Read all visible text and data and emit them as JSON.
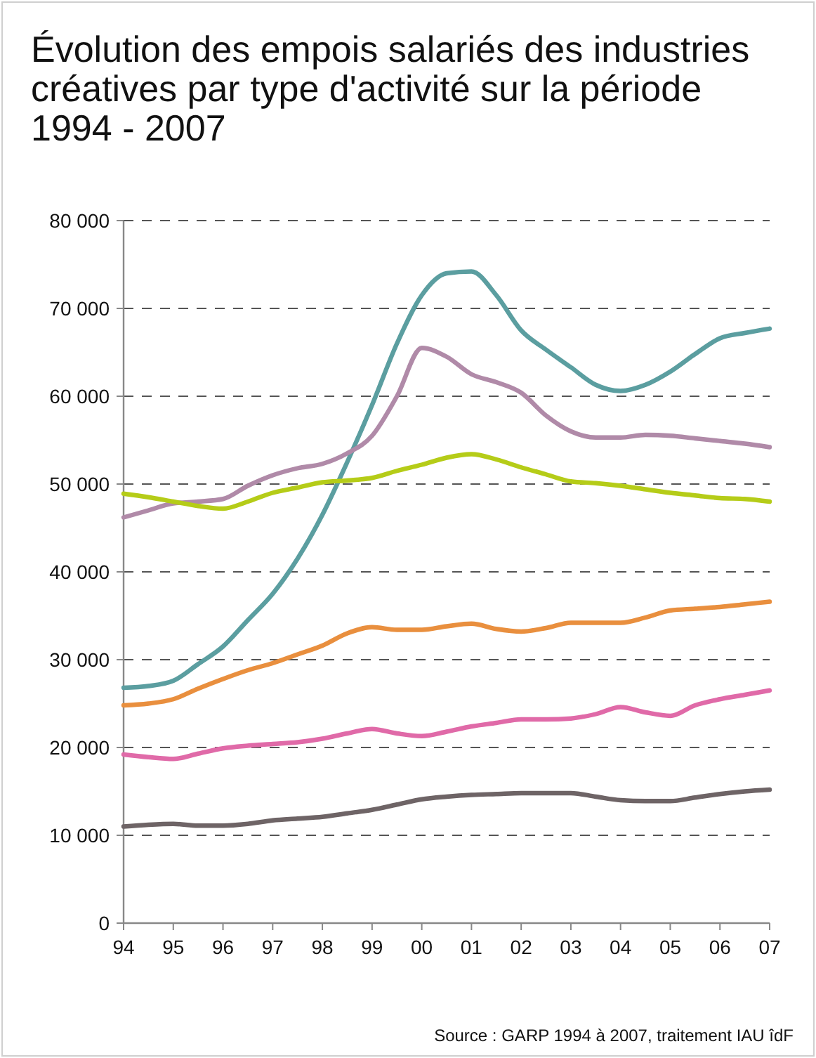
{
  "chart_data": {
    "type": "line",
    "title": "Évolution des empois salariés des industries créatives par type d'activité sur la période 1994 - 2007",
    "x": [
      1994,
      1994.5,
      1995,
      1995.5,
      1996,
      1996.5,
      1997,
      1997.5,
      1998,
      1998.5,
      1999,
      1999.5,
      2000,
      2000.5,
      2001,
      2001.5,
      2002,
      2002.5,
      2003,
      2003.5,
      2004,
      2004.5,
      2005,
      2005.5,
      2006,
      2006.5,
      2007
    ],
    "series": [
      {
        "color": "#5b9ea0",
        "values": [
          26800,
          27000,
          27600,
          29500,
          31500,
          34500,
          37500,
          41500,
          46500,
          52500,
          59000,
          66000,
          71500,
          74000,
          74200,
          71500,
          67500,
          65300,
          63300,
          61300,
          60600,
          61300,
          62800,
          64800,
          66600,
          67200,
          67700
        ]
      },
      {
        "color": "#b08aa8",
        "values": [
          46200,
          47000,
          47800,
          48000,
          48300,
          49800,
          51000,
          51800,
          52300,
          53500,
          55500,
          60000,
          65500,
          64500,
          62500,
          61600,
          60400,
          57800,
          56000,
          55300,
          55300,
          55600,
          55500,
          55200,
          54900,
          54600,
          54200
        ]
      },
      {
        "color": "#b5cc18",
        "values": [
          48900,
          48500,
          48000,
          47500,
          47200,
          48000,
          49000,
          49600,
          50200,
          50400,
          50700,
          51500,
          52200,
          53000,
          53400,
          52800,
          51900,
          51100,
          50300,
          50100,
          49800,
          49400,
          49000,
          48700,
          48400,
          48300,
          48000
        ]
      },
      {
        "color": "#e98f3e",
        "values": [
          24800,
          25000,
          25500,
          26700,
          27800,
          28800,
          29600,
          30600,
          31600,
          33000,
          33700,
          33400,
          33400,
          33800,
          34100,
          33500,
          33200,
          33600,
          34200,
          34200,
          34200,
          34800,
          35600,
          35800,
          36000,
          36300,
          36600
        ]
      },
      {
        "color": "#e06aa8",
        "values": [
          19200,
          18900,
          18700,
          19300,
          19900,
          20200,
          20400,
          20600,
          21000,
          21600,
          22100,
          21600,
          21300,
          21800,
          22400,
          22800,
          23200,
          23200,
          23300,
          23800,
          24600,
          24000,
          23600,
          24800,
          25500,
          26000,
          26500
        ]
      },
      {
        "color": "#6e6466",
        "values": [
          11000,
          11200,
          11300,
          11100,
          11100,
          11300,
          11700,
          11900,
          12100,
          12500,
          12900,
          13500,
          14100,
          14400,
          14600,
          14700,
          14800,
          14800,
          14800,
          14400,
          14000,
          13900,
          13900,
          14300,
          14700,
          15000,
          15200
        ]
      }
    ],
    "xlim": [
      1994,
      2007
    ],
    "xticks": [
      {
        "value": 1994,
        "label": "94"
      },
      {
        "value": 1995,
        "label": "95"
      },
      {
        "value": 1996,
        "label": "96"
      },
      {
        "value": 1997,
        "label": "97"
      },
      {
        "value": 1998,
        "label": "98"
      },
      {
        "value": 1999,
        "label": "99"
      },
      {
        "value": 2000,
        "label": "00"
      },
      {
        "value": 2001,
        "label": "01"
      },
      {
        "value": 2002,
        "label": "02"
      },
      {
        "value": 2003,
        "label": "03"
      },
      {
        "value": 2004,
        "label": "04"
      },
      {
        "value": 2005,
        "label": "05"
      },
      {
        "value": 2006,
        "label": "06"
      },
      {
        "value": 2007,
        "label": "07"
      }
    ],
    "ylim": [
      0,
      80000
    ],
    "yticks": [
      0,
      {
        "value": 10000,
        "label": "10 000"
      },
      {
        "value": 20000,
        "label": "20 000"
      },
      {
        "value": 30000,
        "label": "30 000"
      },
      {
        "value": 40000,
        "label": "40 000"
      },
      {
        "value": 50000,
        "label": "50 000"
      },
      {
        "value": 60000,
        "label": "60 000"
      },
      {
        "value": 70000,
        "label": "70 000"
      },
      {
        "value": 80000,
        "label": "80 000"
      }
    ],
    "grid": "y",
    "line_style": "solid",
    "marker": "none",
    "annotations": [
      "Source : GARP 1994 à 2007, traitement IAU îdF"
    ]
  }
}
